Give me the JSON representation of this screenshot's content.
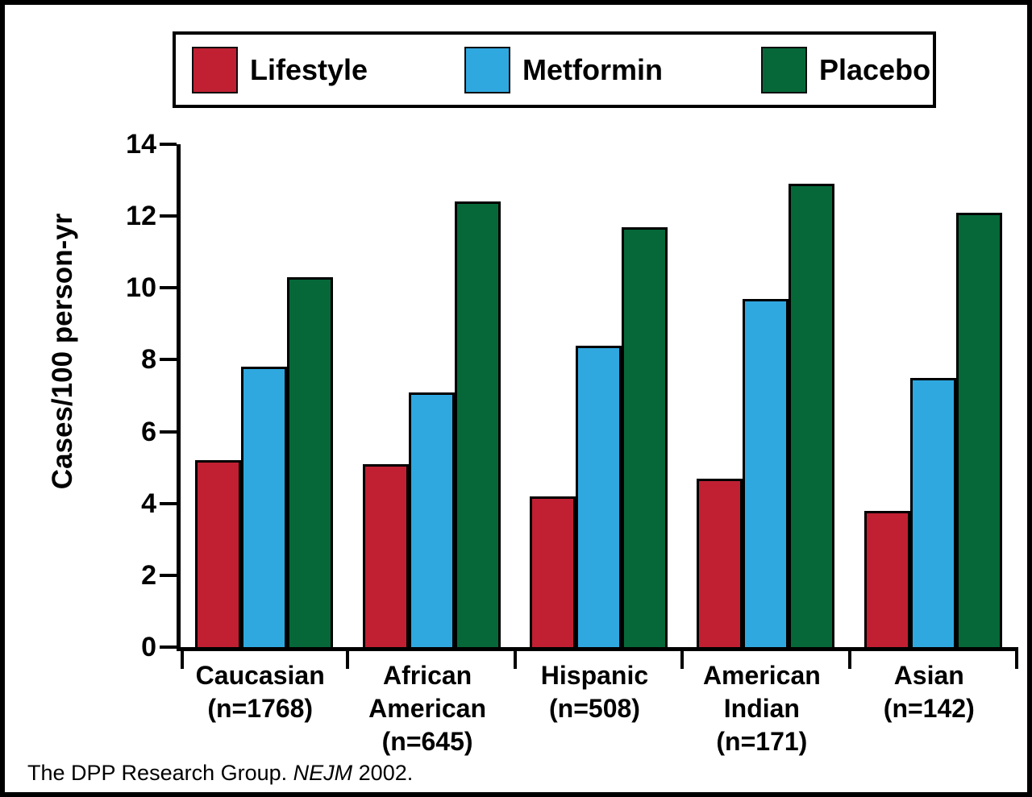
{
  "chart_data": {
    "type": "bar",
    "title": "",
    "xlabel": "",
    "ylabel": "Cases/100 person-yr",
    "ylim": [
      0,
      14
    ],
    "yticks": [
      0,
      2,
      4,
      6,
      8,
      10,
      12,
      14
    ],
    "grid": false,
    "legend_position": "top",
    "categories": [
      "Caucasian (n=1768)",
      "African American (n=645)",
      "Hispanic (n=508)",
      "American Indian (n=171)",
      "Asian (n=142)"
    ],
    "category_label_lines": [
      [
        "Caucasian",
        "(n=1768)"
      ],
      [
        "African",
        "American",
        "(n=645)"
      ],
      [
        "Hispanic",
        "(n=508)"
      ],
      [
        "American",
        "Indian",
        "(n=171)"
      ],
      [
        "Asian",
        "(n=142)"
      ]
    ],
    "series": [
      {
        "name": "Lifestyle",
        "color": "#C02032",
        "values": [
          5.2,
          5.1,
          4.2,
          4.7,
          3.8
        ]
      },
      {
        "name": "Metformin",
        "color": "#2FA8E0",
        "values": [
          7.8,
          7.1,
          8.4,
          9.7,
          7.5
        ]
      },
      {
        "name": "Placebo",
        "color": "#066839",
        "values": [
          10.3,
          12.4,
          11.7,
          12.9,
          12.1
        ]
      }
    ],
    "source_note": {
      "prefix": "The DPP Research Group. ",
      "journal": "NEJM",
      "suffix": " 2002."
    }
  },
  "layout_colors": {
    "axis": "#000000",
    "background": "#ffffff",
    "frame_border": "#000000"
  }
}
